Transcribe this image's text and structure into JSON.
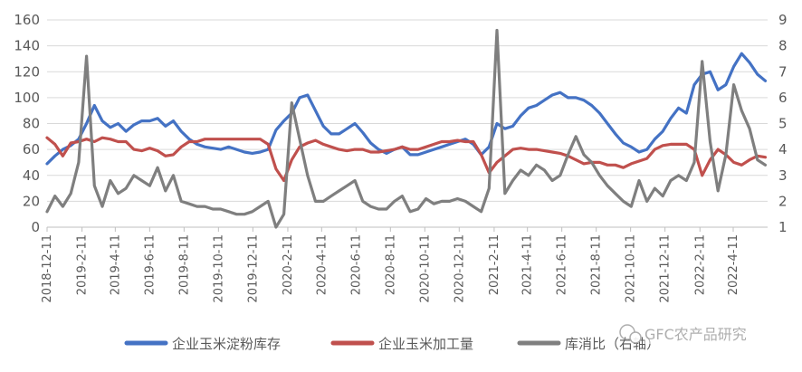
{
  "chart_data": {
    "type": "line",
    "x_tick_labels": [
      "2018-12-11",
      "2019-2-11",
      "2019-4-11",
      "2019-6-11",
      "2019-8-11",
      "2019-10-11",
      "2019-12-11",
      "2020-2-11",
      "2020-4-11",
      "2020-6-11",
      "2020-8-11",
      "2020-10-11",
      "2020-12-11",
      "2021-2-11",
      "2021-4-11",
      "2021-6-11",
      "2021-8-11",
      "2021-10-11",
      "2021-12-11",
      "2022-2-11",
      "2022-4-11"
    ],
    "x_range": [
      "2018-12-11",
      "2022-6-11"
    ],
    "y_left": {
      "ticks": [
        "0",
        "20",
        "40",
        "60",
        "80",
        "100",
        "120",
        "140",
        "160"
      ],
      "min": 0,
      "max": 160
    },
    "y_right": {
      "ticks": [
        "1",
        "2",
        "3",
        "4",
        "5",
        "6",
        "7",
        "8",
        "9"
      ],
      "min": 1,
      "max": 9
    },
    "grid": "horizontal",
    "legend_position": "bottom",
    "series": [
      {
        "name": "企业玉米淀粉库存",
        "axis": "left",
        "color": "#4472c4",
        "points": [
          [
            "2018-12-11",
            49
          ],
          [
            "2018-12-25",
            55
          ],
          [
            "2019-1-8",
            60
          ],
          [
            "2019-1-22",
            63
          ],
          [
            "2019-2-5",
            68
          ],
          [
            "2019-2-19",
            80
          ],
          [
            "2019-3-5",
            94
          ],
          [
            "2019-3-19",
            82
          ],
          [
            "2019-4-2",
            77
          ],
          [
            "2019-4-16",
            80
          ],
          [
            "2019-4-30",
            74
          ],
          [
            "2019-5-14",
            79
          ],
          [
            "2019-5-28",
            82
          ],
          [
            "2019-6-11",
            82
          ],
          [
            "2019-6-25",
            84
          ],
          [
            "2019-7-9",
            78
          ],
          [
            "2019-7-23",
            82
          ],
          [
            "2019-8-6",
            74
          ],
          [
            "2019-8-20",
            68
          ],
          [
            "2019-9-3",
            64
          ],
          [
            "2019-9-17",
            62
          ],
          [
            "2019-10-1",
            61
          ],
          [
            "2019-10-15",
            60
          ],
          [
            "2019-10-29",
            62
          ],
          [
            "2019-11-12",
            60
          ],
          [
            "2019-11-26",
            58
          ],
          [
            "2019-12-10",
            57
          ],
          [
            "2019-12-24",
            58
          ],
          [
            "2020-1-7",
            60
          ],
          [
            "2020-1-21",
            75
          ],
          [
            "2020-2-4",
            82
          ],
          [
            "2020-2-18",
            88
          ],
          [
            "2020-3-3",
            100
          ],
          [
            "2020-3-17",
            102
          ],
          [
            "2020-3-31",
            90
          ],
          [
            "2020-4-14",
            78
          ],
          [
            "2020-4-28",
            72
          ],
          [
            "2020-5-12",
            72
          ],
          [
            "2020-5-26",
            76
          ],
          [
            "2020-6-9",
            80
          ],
          [
            "2020-6-23",
            73
          ],
          [
            "2020-7-7",
            65
          ],
          [
            "2020-7-21",
            60
          ],
          [
            "2020-8-4",
            57
          ],
          [
            "2020-8-18",
            60
          ],
          [
            "2020-9-1",
            62
          ],
          [
            "2020-9-15",
            56
          ],
          [
            "2020-9-29",
            56
          ],
          [
            "2020-10-13",
            58
          ],
          [
            "2020-10-27",
            60
          ],
          [
            "2020-11-10",
            62
          ],
          [
            "2020-11-24",
            64
          ],
          [
            "2020-12-8",
            66
          ],
          [
            "2020-12-22",
            68
          ],
          [
            "2021-1-5",
            64
          ],
          [
            "2021-1-19",
            56
          ],
          [
            "2021-2-2",
            62
          ],
          [
            "2021-2-16",
            80
          ],
          [
            "2021-3-2",
            76
          ],
          [
            "2021-3-16",
            78
          ],
          [
            "2021-3-30",
            86
          ],
          [
            "2021-4-13",
            92
          ],
          [
            "2021-4-27",
            94
          ],
          [
            "2021-5-11",
            98
          ],
          [
            "2021-5-25",
            102
          ],
          [
            "2021-6-8",
            104
          ],
          [
            "2021-6-22",
            100
          ],
          [
            "2021-7-6",
            100
          ],
          [
            "2021-7-20",
            98
          ],
          [
            "2021-8-3",
            94
          ],
          [
            "2021-8-17",
            88
          ],
          [
            "2021-8-31",
            80
          ],
          [
            "2021-9-14",
            72
          ],
          [
            "2021-9-28",
            65
          ],
          [
            "2021-10-12",
            62
          ],
          [
            "2021-10-26",
            58
          ],
          [
            "2021-11-9",
            60
          ],
          [
            "2021-11-23",
            68
          ],
          [
            "2021-12-7",
            74
          ],
          [
            "2021-12-21",
            84
          ],
          [
            "2022-1-4",
            92
          ],
          [
            "2022-1-18",
            88
          ],
          [
            "2022-2-1",
            110
          ],
          [
            "2022-2-15",
            118
          ],
          [
            "2022-3-1",
            120
          ],
          [
            "2022-3-15",
            106
          ],
          [
            "2022-3-29",
            110
          ],
          [
            "2022-4-12",
            124
          ],
          [
            "2022-4-26",
            134
          ],
          [
            "2022-5-10",
            127
          ],
          [
            "2022-5-24",
            118
          ],
          [
            "2022-6-7",
            113
          ]
        ]
      },
      {
        "name": "企业玉米加工量",
        "axis": "left",
        "color": "#c0504d",
        "points": [
          [
            "2018-12-11",
            69
          ],
          [
            "2018-12-25",
            64
          ],
          [
            "2019-1-8",
            55
          ],
          [
            "2019-1-22",
            65
          ],
          [
            "2019-2-5",
            66
          ],
          [
            "2019-2-19",
            68
          ],
          [
            "2019-3-5",
            66
          ],
          [
            "2019-3-19",
            69
          ],
          [
            "2019-4-2",
            68
          ],
          [
            "2019-4-16",
            66
          ],
          [
            "2019-4-30",
            66
          ],
          [
            "2019-5-14",
            60
          ],
          [
            "2019-5-28",
            59
          ],
          [
            "2019-6-11",
            61
          ],
          [
            "2019-6-25",
            59
          ],
          [
            "2019-7-9",
            55
          ],
          [
            "2019-7-23",
            56
          ],
          [
            "2019-8-6",
            62
          ],
          [
            "2019-8-20",
            66
          ],
          [
            "2019-9-3",
            66
          ],
          [
            "2019-9-17",
            68
          ],
          [
            "2019-10-1",
            68
          ],
          [
            "2019-10-15",
            68
          ],
          [
            "2019-10-29",
            68
          ],
          [
            "2019-11-12",
            68
          ],
          [
            "2019-11-26",
            68
          ],
          [
            "2019-12-10",
            68
          ],
          [
            "2019-12-24",
            68
          ],
          [
            "2020-1-7",
            64
          ],
          [
            "2020-1-21",
            45
          ],
          [
            "2020-2-4",
            36
          ],
          [
            "2020-2-18",
            52
          ],
          [
            "2020-3-3",
            62
          ],
          [
            "2020-3-17",
            65
          ],
          [
            "2020-3-31",
            67
          ],
          [
            "2020-4-14",
            64
          ],
          [
            "2020-4-28",
            62
          ],
          [
            "2020-5-12",
            60
          ],
          [
            "2020-5-26",
            59
          ],
          [
            "2020-6-9",
            60
          ],
          [
            "2020-6-23",
            60
          ],
          [
            "2020-7-7",
            58
          ],
          [
            "2020-7-21",
            58
          ],
          [
            "2020-8-4",
            59
          ],
          [
            "2020-8-18",
            60
          ],
          [
            "2020-9-1",
            62
          ],
          [
            "2020-9-15",
            60
          ],
          [
            "2020-9-29",
            60
          ],
          [
            "2020-10-13",
            62
          ],
          [
            "2020-10-27",
            64
          ],
          [
            "2020-11-10",
            66
          ],
          [
            "2020-11-24",
            66
          ],
          [
            "2020-12-8",
            67
          ],
          [
            "2020-12-22",
            66
          ],
          [
            "2021-1-5",
            66
          ],
          [
            "2021-1-19",
            56
          ],
          [
            "2021-2-2",
            42
          ],
          [
            "2021-2-16",
            50
          ],
          [
            "2021-3-2",
            55
          ],
          [
            "2021-3-16",
            60
          ],
          [
            "2021-3-30",
            61
          ],
          [
            "2021-4-13",
            60
          ],
          [
            "2021-4-27",
            60
          ],
          [
            "2021-5-11",
            59
          ],
          [
            "2021-5-25",
            58
          ],
          [
            "2021-6-8",
            57
          ],
          [
            "2021-6-22",
            55
          ],
          [
            "2021-7-6",
            52
          ],
          [
            "2021-7-20",
            49
          ],
          [
            "2021-8-3",
            50
          ],
          [
            "2021-8-17",
            50
          ],
          [
            "2021-8-31",
            48
          ],
          [
            "2021-9-14",
            48
          ],
          [
            "2021-9-28",
            46
          ],
          [
            "2021-10-12",
            49
          ],
          [
            "2021-10-26",
            51
          ],
          [
            "2021-11-9",
            53
          ],
          [
            "2021-11-23",
            60
          ],
          [
            "2021-12-7",
            63
          ],
          [
            "2021-12-21",
            64
          ],
          [
            "2022-1-4",
            64
          ],
          [
            "2022-1-18",
            64
          ],
          [
            "2022-2-1",
            60
          ],
          [
            "2022-2-15",
            40
          ],
          [
            "2022-3-1",
            52
          ],
          [
            "2022-3-15",
            60
          ],
          [
            "2022-3-29",
            56
          ],
          [
            "2022-4-12",
            50
          ],
          [
            "2022-4-26",
            48
          ],
          [
            "2022-5-10",
            52
          ],
          [
            "2022-5-24",
            55
          ],
          [
            "2022-6-7",
            54
          ]
        ]
      },
      {
        "name": "库消比（右轴）",
        "axis": "right",
        "color": "#7f7f7f",
        "points": [
          [
            "2018-12-11",
            1.6
          ],
          [
            "2018-12-25",
            2.2
          ],
          [
            "2019-1-8",
            1.8
          ],
          [
            "2019-1-22",
            2.3
          ],
          [
            "2019-2-5",
            3.5
          ],
          [
            "2019-2-19",
            7.6
          ],
          [
            "2019-3-5",
            2.6
          ],
          [
            "2019-3-19",
            1.8
          ],
          [
            "2019-4-2",
            2.8
          ],
          [
            "2019-4-16",
            2.3
          ],
          [
            "2019-4-30",
            2.5
          ],
          [
            "2019-5-14",
            3.0
          ],
          [
            "2019-5-28",
            2.8
          ],
          [
            "2019-6-11",
            2.6
          ],
          [
            "2019-6-25",
            3.3
          ],
          [
            "2019-7-9",
            2.4
          ],
          [
            "2019-7-23",
            3.0
          ],
          [
            "2019-8-6",
            2.0
          ],
          [
            "2019-8-20",
            1.9
          ],
          [
            "2019-9-3",
            1.8
          ],
          [
            "2019-9-17",
            1.8
          ],
          [
            "2019-10-1",
            1.7
          ],
          [
            "2019-10-15",
            1.7
          ],
          [
            "2019-10-29",
            1.6
          ],
          [
            "2019-11-12",
            1.5
          ],
          [
            "2019-11-26",
            1.5
          ],
          [
            "2019-12-10",
            1.6
          ],
          [
            "2019-12-24",
            1.8
          ],
          [
            "2020-1-7",
            2.0
          ],
          [
            "2020-1-21",
            1.0
          ],
          [
            "2020-2-4",
            1.5
          ],
          [
            "2020-2-18",
            5.8
          ],
          [
            "2020-3-3",
            4.4
          ],
          [
            "2020-3-17",
            3.0
          ],
          [
            "2020-3-31",
            2.0
          ],
          [
            "2020-4-14",
            2.0
          ],
          [
            "2020-4-28",
            2.2
          ],
          [
            "2020-5-12",
            2.4
          ],
          [
            "2020-5-26",
            2.6
          ],
          [
            "2020-6-9",
            2.8
          ],
          [
            "2020-6-23",
            2.0
          ],
          [
            "2020-7-7",
            1.8
          ],
          [
            "2020-7-21",
            1.7
          ],
          [
            "2020-8-4",
            1.7
          ],
          [
            "2020-8-18",
            2.0
          ],
          [
            "2020-9-1",
            2.2
          ],
          [
            "2020-9-15",
            1.6
          ],
          [
            "2020-9-29",
            1.7
          ],
          [
            "2020-10-13",
            2.1
          ],
          [
            "2020-10-27",
            1.9
          ],
          [
            "2020-11-10",
            2.0
          ],
          [
            "2020-11-24",
            2.0
          ],
          [
            "2020-12-8",
            2.1
          ],
          [
            "2020-12-22",
            2.0
          ],
          [
            "2021-1-5",
            1.8
          ],
          [
            "2021-1-19",
            1.6
          ],
          [
            "2021-2-2",
            2.5
          ],
          [
            "2021-2-16",
            8.6
          ],
          [
            "2021-3-2",
            2.3
          ],
          [
            "2021-3-16",
            2.8
          ],
          [
            "2021-3-30",
            3.2
          ],
          [
            "2021-4-13",
            3.0
          ],
          [
            "2021-4-27",
            3.4
          ],
          [
            "2021-5-11",
            3.2
          ],
          [
            "2021-5-25",
            2.8
          ],
          [
            "2021-6-8",
            3.0
          ],
          [
            "2021-6-22",
            3.8
          ],
          [
            "2021-7-6",
            4.5
          ],
          [
            "2021-7-20",
            3.8
          ],
          [
            "2021-8-3",
            3.5
          ],
          [
            "2021-8-17",
            3.0
          ],
          [
            "2021-8-31",
            2.6
          ],
          [
            "2021-9-14",
            2.3
          ],
          [
            "2021-9-28",
            2.0
          ],
          [
            "2021-10-12",
            1.8
          ],
          [
            "2021-10-26",
            2.8
          ],
          [
            "2021-11-9",
            2.0
          ],
          [
            "2021-11-23",
            2.5
          ],
          [
            "2021-12-7",
            2.2
          ],
          [
            "2021-12-21",
            2.8
          ],
          [
            "2022-1-4",
            3.0
          ],
          [
            "2022-1-18",
            2.8
          ],
          [
            "2022-2-1",
            3.5
          ],
          [
            "2022-2-15",
            7.4
          ],
          [
            "2022-3-1",
            4.3
          ],
          [
            "2022-3-15",
            2.4
          ],
          [
            "2022-3-29",
            3.8
          ],
          [
            "2022-4-12",
            6.5
          ],
          [
            "2022-4-26",
            5.5
          ],
          [
            "2022-5-10",
            4.8
          ],
          [
            "2022-5-24",
            3.6
          ],
          [
            "2022-6-7",
            3.4
          ]
        ]
      }
    ]
  },
  "legend": [
    {
      "label": "企业玉米淀粉库存",
      "color": "#4472c4"
    },
    {
      "label": "企业玉米加工量",
      "color": "#c0504d"
    },
    {
      "label": "库消比（右轴）",
      "color": "#7f7f7f"
    }
  ],
  "watermark": {
    "text": "GFC农产品研究",
    "icon": "wechat-logo-icon"
  }
}
